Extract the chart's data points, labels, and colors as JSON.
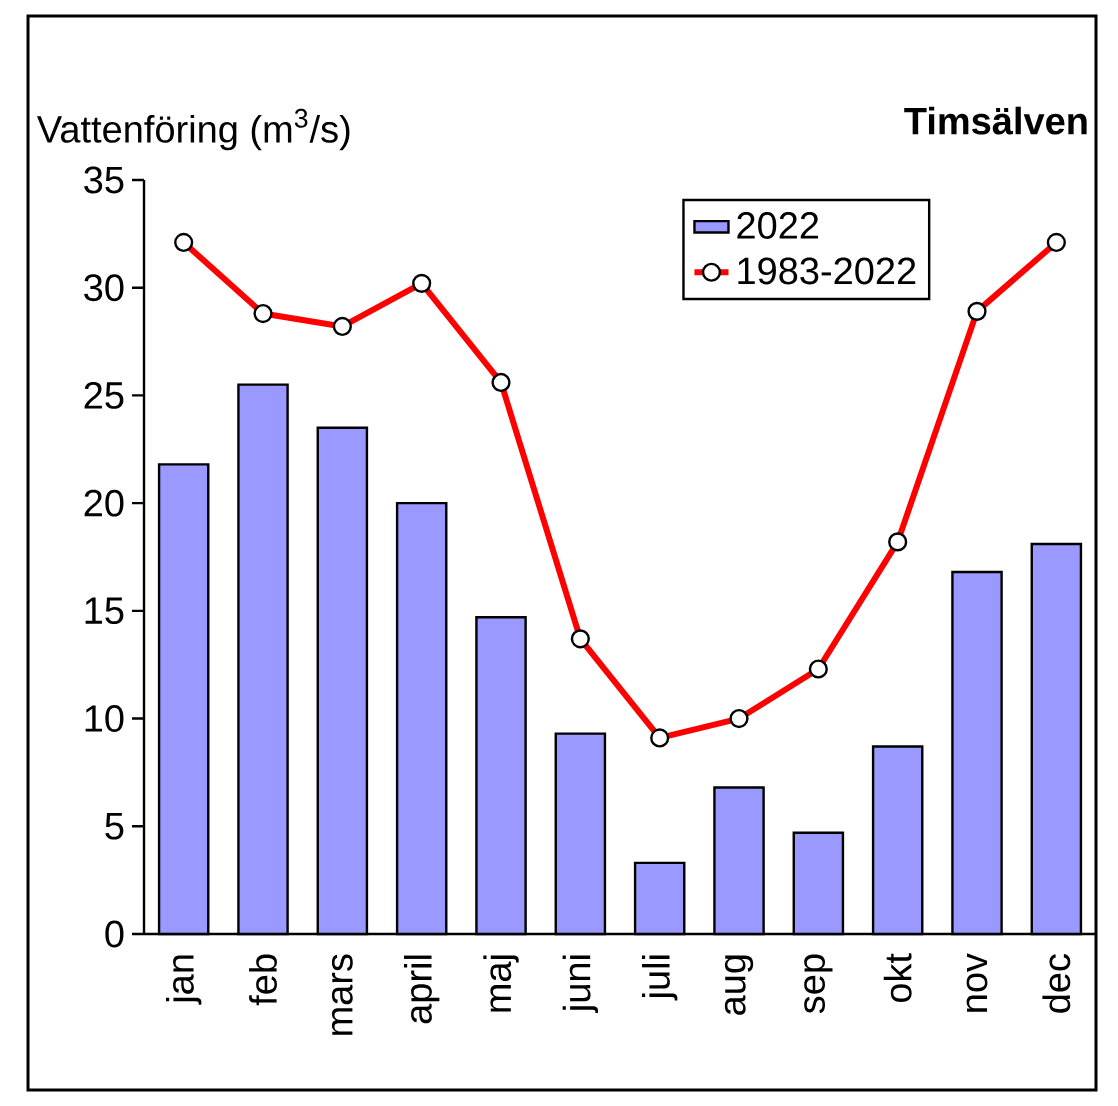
{
  "chart_data": {
    "type": "bar",
    "title": "Timsälven",
    "ylabel": "Vattenföring (m$^{3}$/s)",
    "categories": [
      "jan",
      "feb",
      "mars",
      "april",
      "maj",
      "juni",
      "juli",
      "aug",
      "sep",
      "okt",
      "nov",
      "dec"
    ],
    "series": [
      {
        "name": "2022",
        "color": "#9999ff",
        "values": [
          21.8,
          25.5,
          23.5,
          20.0,
          14.7,
          9.3,
          3.3,
          6.8,
          4.7,
          8.7,
          16.8,
          18.1
        ]
      },
      {
        "name": "1983-2022",
        "type": "line",
        "color": "#ff0000",
        "values": [
          32.1,
          28.8,
          28.2,
          30.2,
          25.6,
          13.7,
          9.1,
          10.0,
          12.3,
          18.2,
          28.9,
          32.1
        ]
      }
    ],
    "marker": "circle",
    "ylim": [
      0,
      35
    ],
    "yticks": [
      0,
      5,
      10,
      15,
      20,
      25,
      30,
      35
    ],
    "legend": "top right"
  }
}
